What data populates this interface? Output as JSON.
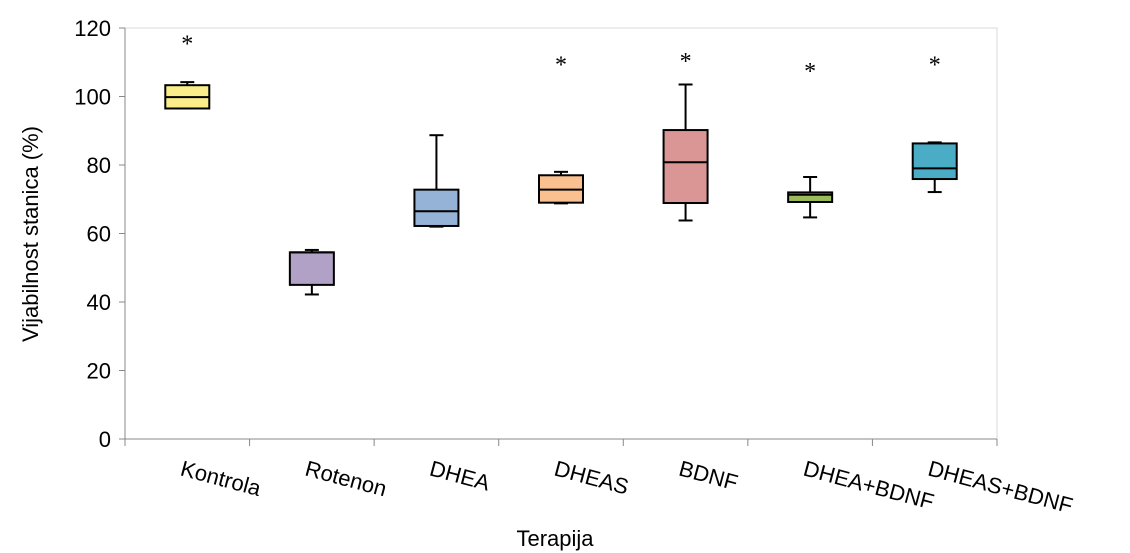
{
  "chart_data": {
    "type": "box",
    "xlabel": "Terapija",
    "ylabel": "Vijabilnost stanica (%)",
    "ylim": [
      0,
      120
    ],
    "yticks": [
      0,
      20,
      40,
      60,
      80,
      100,
      120
    ],
    "grid": false,
    "legend": "none",
    "categories": [
      "Kontrola",
      "Rotenon",
      "DHEA",
      "DHEAS",
      "BDNF",
      "DHEA+BDNF",
      "DHEAS+BDNF"
    ],
    "boxes": [
      {
        "category": "Kontrola",
        "min": 96.5,
        "q1": 96.5,
        "median": 99.8,
        "q3": 103.3,
        "max": 104.2,
        "color": "#FBEE8A",
        "annotation": "*"
      },
      {
        "category": "Rotenon",
        "min": 42.2,
        "q1": 45.0,
        "median": 54.5,
        "q3": 54.5,
        "max": 55.2,
        "color": "#B2A1C7",
        "annotation": ""
      },
      {
        "category": "DHEA",
        "min": 62.0,
        "q1": 62.2,
        "median": 66.5,
        "q3": 72.8,
        "max": 88.7,
        "color": "#95B3D7",
        "annotation": ""
      },
      {
        "category": "DHEAS",
        "min": 68.8,
        "q1": 69.0,
        "median": 72.8,
        "q3": 77.0,
        "max": 78.0,
        "color": "#FAC090",
        "annotation": "*"
      },
      {
        "category": "BDNF",
        "min": 63.8,
        "q1": 68.9,
        "median": 80.8,
        "q3": 90.2,
        "max": 103.5,
        "color": "#D99694",
        "annotation": "*"
      },
      {
        "category": "DHEA+BDNF",
        "min": 64.7,
        "q1": 69.2,
        "median": 71.3,
        "q3": 72.0,
        "max": 76.5,
        "color": "#9BBB59",
        "annotation": "*"
      },
      {
        "category": "DHEAS+BDNF",
        "min": 72.1,
        "q1": 75.9,
        "median": 79.0,
        "q3": 86.3,
        "max": 86.6,
        "color": "#4BACC6",
        "annotation": "*"
      }
    ],
    "annotation_y": [
      116,
      null,
      null,
      110,
      111,
      108,
      110
    ]
  }
}
